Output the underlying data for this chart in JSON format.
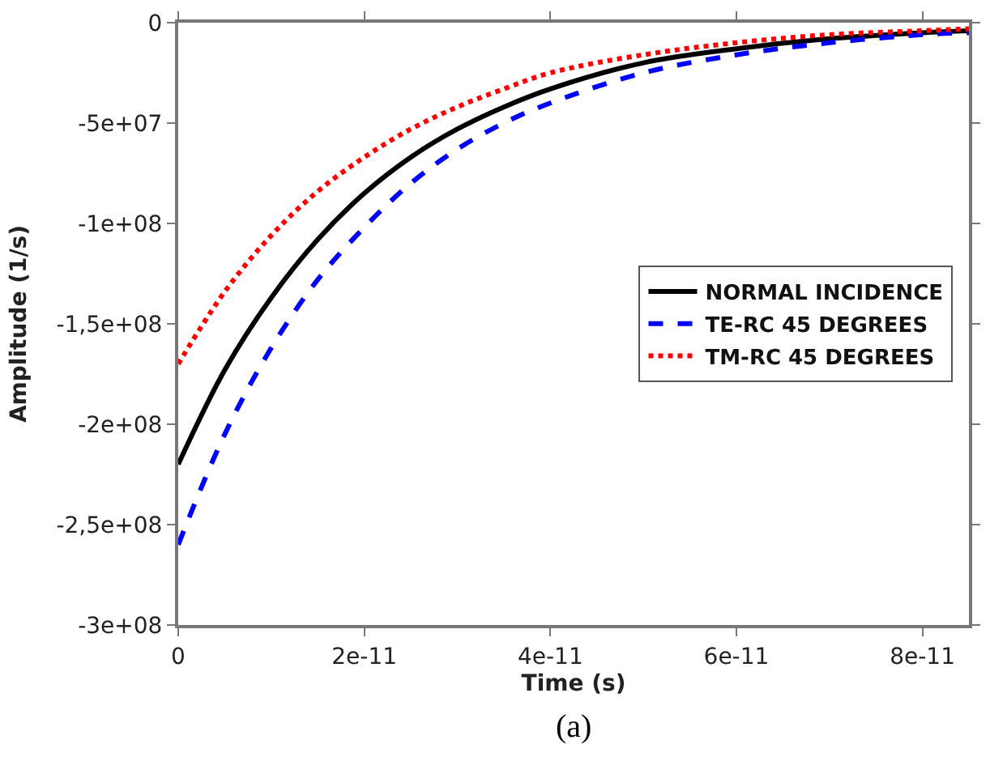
{
  "chart_data": {
    "type": "line",
    "xlabel": "Time (s)",
    "ylabel": "Amplitude (1/s)",
    "x": [
      0,
      5e-12,
      1e-11,
      1.5e-11,
      2e-11,
      2.5e-11,
      3e-11,
      3.5e-11,
      4e-11,
      5e-11,
      6e-11,
      7e-11,
      8e-11,
      8.5e-11
    ],
    "series": [
      {
        "name": "NORMAL INCIDENCE",
        "color": "#000000",
        "line_style": "solid",
        "values": [
          -220000000,
          -173000000,
          -137000000,
          -108000000,
          -85000000,
          -67000000,
          -53000000,
          -42000000,
          -33000000,
          -20000000,
          -13000000,
          -8000000,
          -5000000,
          -4000000
        ]
      },
      {
        "name": "TE-RC 45 DEGREES",
        "color": "#0000ff",
        "line_style": "dashed",
        "values": [
          -260000000,
          -205000000,
          -162000000,
          -128000000,
          -102000000,
          -80000000,
          -63000000,
          -50000000,
          -40000000,
          -25000000,
          -16000000,
          -10000000,
          -6000000,
          -5000000
        ]
      },
      {
        "name": "TM-RC 45 DEGREES",
        "color": "#ff0000",
        "line_style": "dotted",
        "values": [
          -170000000,
          -134000000,
          -106000000,
          -84000000,
          -67000000,
          -53000000,
          -42000000,
          -33000000,
          -25000000,
          -16000000,
          -10000000,
          -6000000,
          -4000000,
          -3000000
        ]
      }
    ],
    "xlim": [
      0,
      8.5e-11
    ],
    "xticks": [
      {
        "value": 0,
        "label": "0"
      },
      {
        "value": 2e-11,
        "label": "2e-11"
      },
      {
        "value": 4e-11,
        "label": "4e-11"
      },
      {
        "value": 6e-11,
        "label": "6e-11"
      },
      {
        "value": 8e-11,
        "label": "8e-11"
      }
    ],
    "ylim": [
      -300000000,
      0
    ],
    "yticks": [
      {
        "value": 0,
        "label": "0"
      },
      {
        "value": -50000000,
        "label": "-5e+07"
      },
      {
        "value": -100000000,
        "label": "-1e+08"
      },
      {
        "value": -150000000,
        "label": "-1,5e+08"
      },
      {
        "value": -200000000,
        "label": "-2e+08"
      },
      {
        "value": -250000000,
        "label": "-2,5e+08"
      },
      {
        "value": -300000000,
        "label": "-3e+08"
      }
    ],
    "legend": "right",
    "marker": "none",
    "annotations": [
      "(a)"
    ]
  }
}
